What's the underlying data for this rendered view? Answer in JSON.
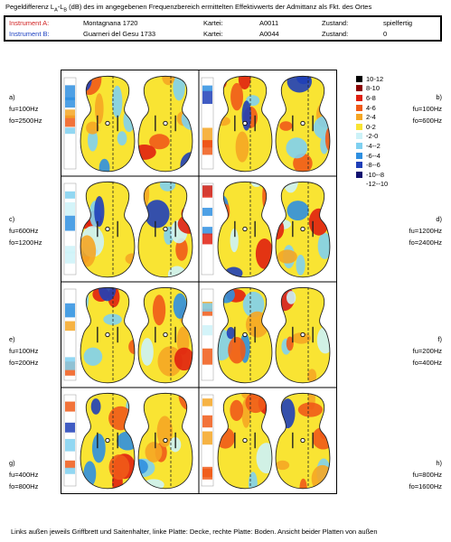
{
  "title": {
    "prefix": "Pegeldifferenz ",
    "L": "L",
    "subA": "A",
    "dash": "-",
    "subB": "B",
    "suffix": " (dB) des im angegebenen Frequenzbereich ermittelten Effektivwerts der Admittanz als Fkt. des Ortes"
  },
  "instruments": [
    {
      "label": "Instrument A:",
      "name": "Montagnana 1720",
      "kartei_label": "Kartei:",
      "kartei": "A0011",
      "zustand_label": "Zustand:",
      "zustand": "spielfertig"
    },
    {
      "label": "Instrument B:",
      "name": "Guarneri del Gesu 1733",
      "kartei_label": "Kartei:",
      "kartei": "A0044",
      "zustand_label": "Zustand:",
      "zustand": "0"
    }
  ],
  "panels": [
    {
      "id": "a)",
      "fu": "fu=100Hz",
      "fo": "fo=2500Hz",
      "side": "left"
    },
    {
      "id": "b)",
      "fu": "fu=100Hz",
      "fo": "fo=600Hz",
      "side": "right"
    },
    {
      "id": "c)",
      "fu": "fu=600Hz",
      "fo": "fo=1200Hz",
      "side": "left"
    },
    {
      "id": "d)",
      "fu": "fu=1200Hz",
      "fo": "fo=2400Hz",
      "side": "right"
    },
    {
      "id": "e)",
      "fu": "fu=100Hz",
      "fo": "fo=200Hz",
      "side": "left"
    },
    {
      "id": "f)",
      "fu": "fu=200Hz",
      "fo": "fo=400Hz",
      "side": "right"
    },
    {
      "id": "g)",
      "fu": "fu=400Hz",
      "fo": "fo=800Hz",
      "side": "left"
    },
    {
      "id": "h)",
      "fu": "fu=800Hz",
      "fo": "fo=1600Hz",
      "side": "right"
    }
  ],
  "legend": [
    {
      "label": "10-12",
      "color": "#000000"
    },
    {
      "label": "8-10",
      "color": "#8b0000"
    },
    {
      "label": "6-8",
      "color": "#e02010"
    },
    {
      "label": "4-6",
      "color": "#f05a18"
    },
    {
      "label": "2-4",
      "color": "#f5a623"
    },
    {
      "label": "0-2",
      "color": "#f9e433"
    },
    {
      "label": "-2-0",
      "color": "#ccf2f8"
    },
    {
      "label": "-4--2",
      "color": "#7fd0f0"
    },
    {
      "label": "-6--4",
      "color": "#2f8fe0"
    },
    {
      "label": "-8--6",
      "color": "#1f3fb8"
    },
    {
      "label": "-10--8",
      "color": "#101070"
    },
    {
      "label": "-12--10",
      "color": "#ffffff"
    }
  ],
  "footer": "Links außen jeweils Griffbrett und Saitenhalter, linke Platte: Decke, rechte Platte: Boden. Ansicht beider Platten von außen"
}
